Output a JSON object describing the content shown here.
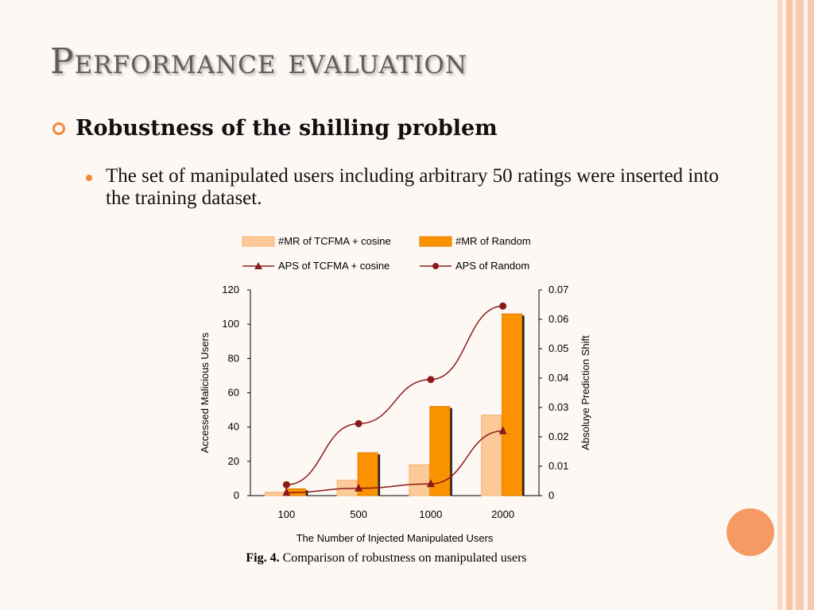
{
  "slide": {
    "title": "Performance evaluation",
    "bullet_main": "Robustness of the shilling problem",
    "bullet_sub": "The set of manipulated users including arbitrary 50 ratings were inserted into the training dataset.",
    "caption_label": "Fig. 4.",
    "caption_text": "Comparison of robustness on manipulated users"
  },
  "colors": {
    "stripe_a": "#f7c9ae",
    "stripe_b": "#fde8dc",
    "accent": "#f08a3a",
    "bar_light": "#fcc998",
    "bar_light_edge": "#f5b477",
    "bar_dark": "#fb9300",
    "bar_dark_edge": "#e07c00",
    "line": "#8b1a1a"
  },
  "chart_data": {
    "type": "bar",
    "xlabel": "The Number of Injected Manipulated Users",
    "ylabel": "Accessed Malicious Users",
    "y2label": "Absoluye Prediction Shift",
    "categories": [
      "100",
      "500",
      "1000",
      "2000"
    ],
    "ylim": [
      0,
      120
    ],
    "y_ticks": [
      "0",
      "20",
      "40",
      "60",
      "80",
      "100",
      "120"
    ],
    "y2lim": [
      0,
      0.07
    ],
    "y2_ticks": [
      "0",
      "0.01",
      "0.02",
      "0.03",
      "0.04",
      "0.05",
      "0.06",
      "0.07"
    ],
    "series": [
      {
        "name": "#MR of TCFMA + cosine",
        "kind": "bar",
        "values": [
          2,
          9,
          18,
          47
        ]
      },
      {
        "name": "#MR of Random",
        "kind": "bar",
        "values": [
          4,
          25,
          52,
          106
        ]
      },
      {
        "name": "APS of TCFMA + cosine",
        "kind": "line",
        "marker": "triangle",
        "values": [
          0.001,
          0.0025,
          0.004,
          0.022
        ]
      },
      {
        "name": "APS of Random",
        "kind": "line",
        "marker": "circle",
        "values": [
          0.0037,
          0.0245,
          0.0395,
          0.0645
        ]
      }
    ],
    "legend_position": "top"
  }
}
